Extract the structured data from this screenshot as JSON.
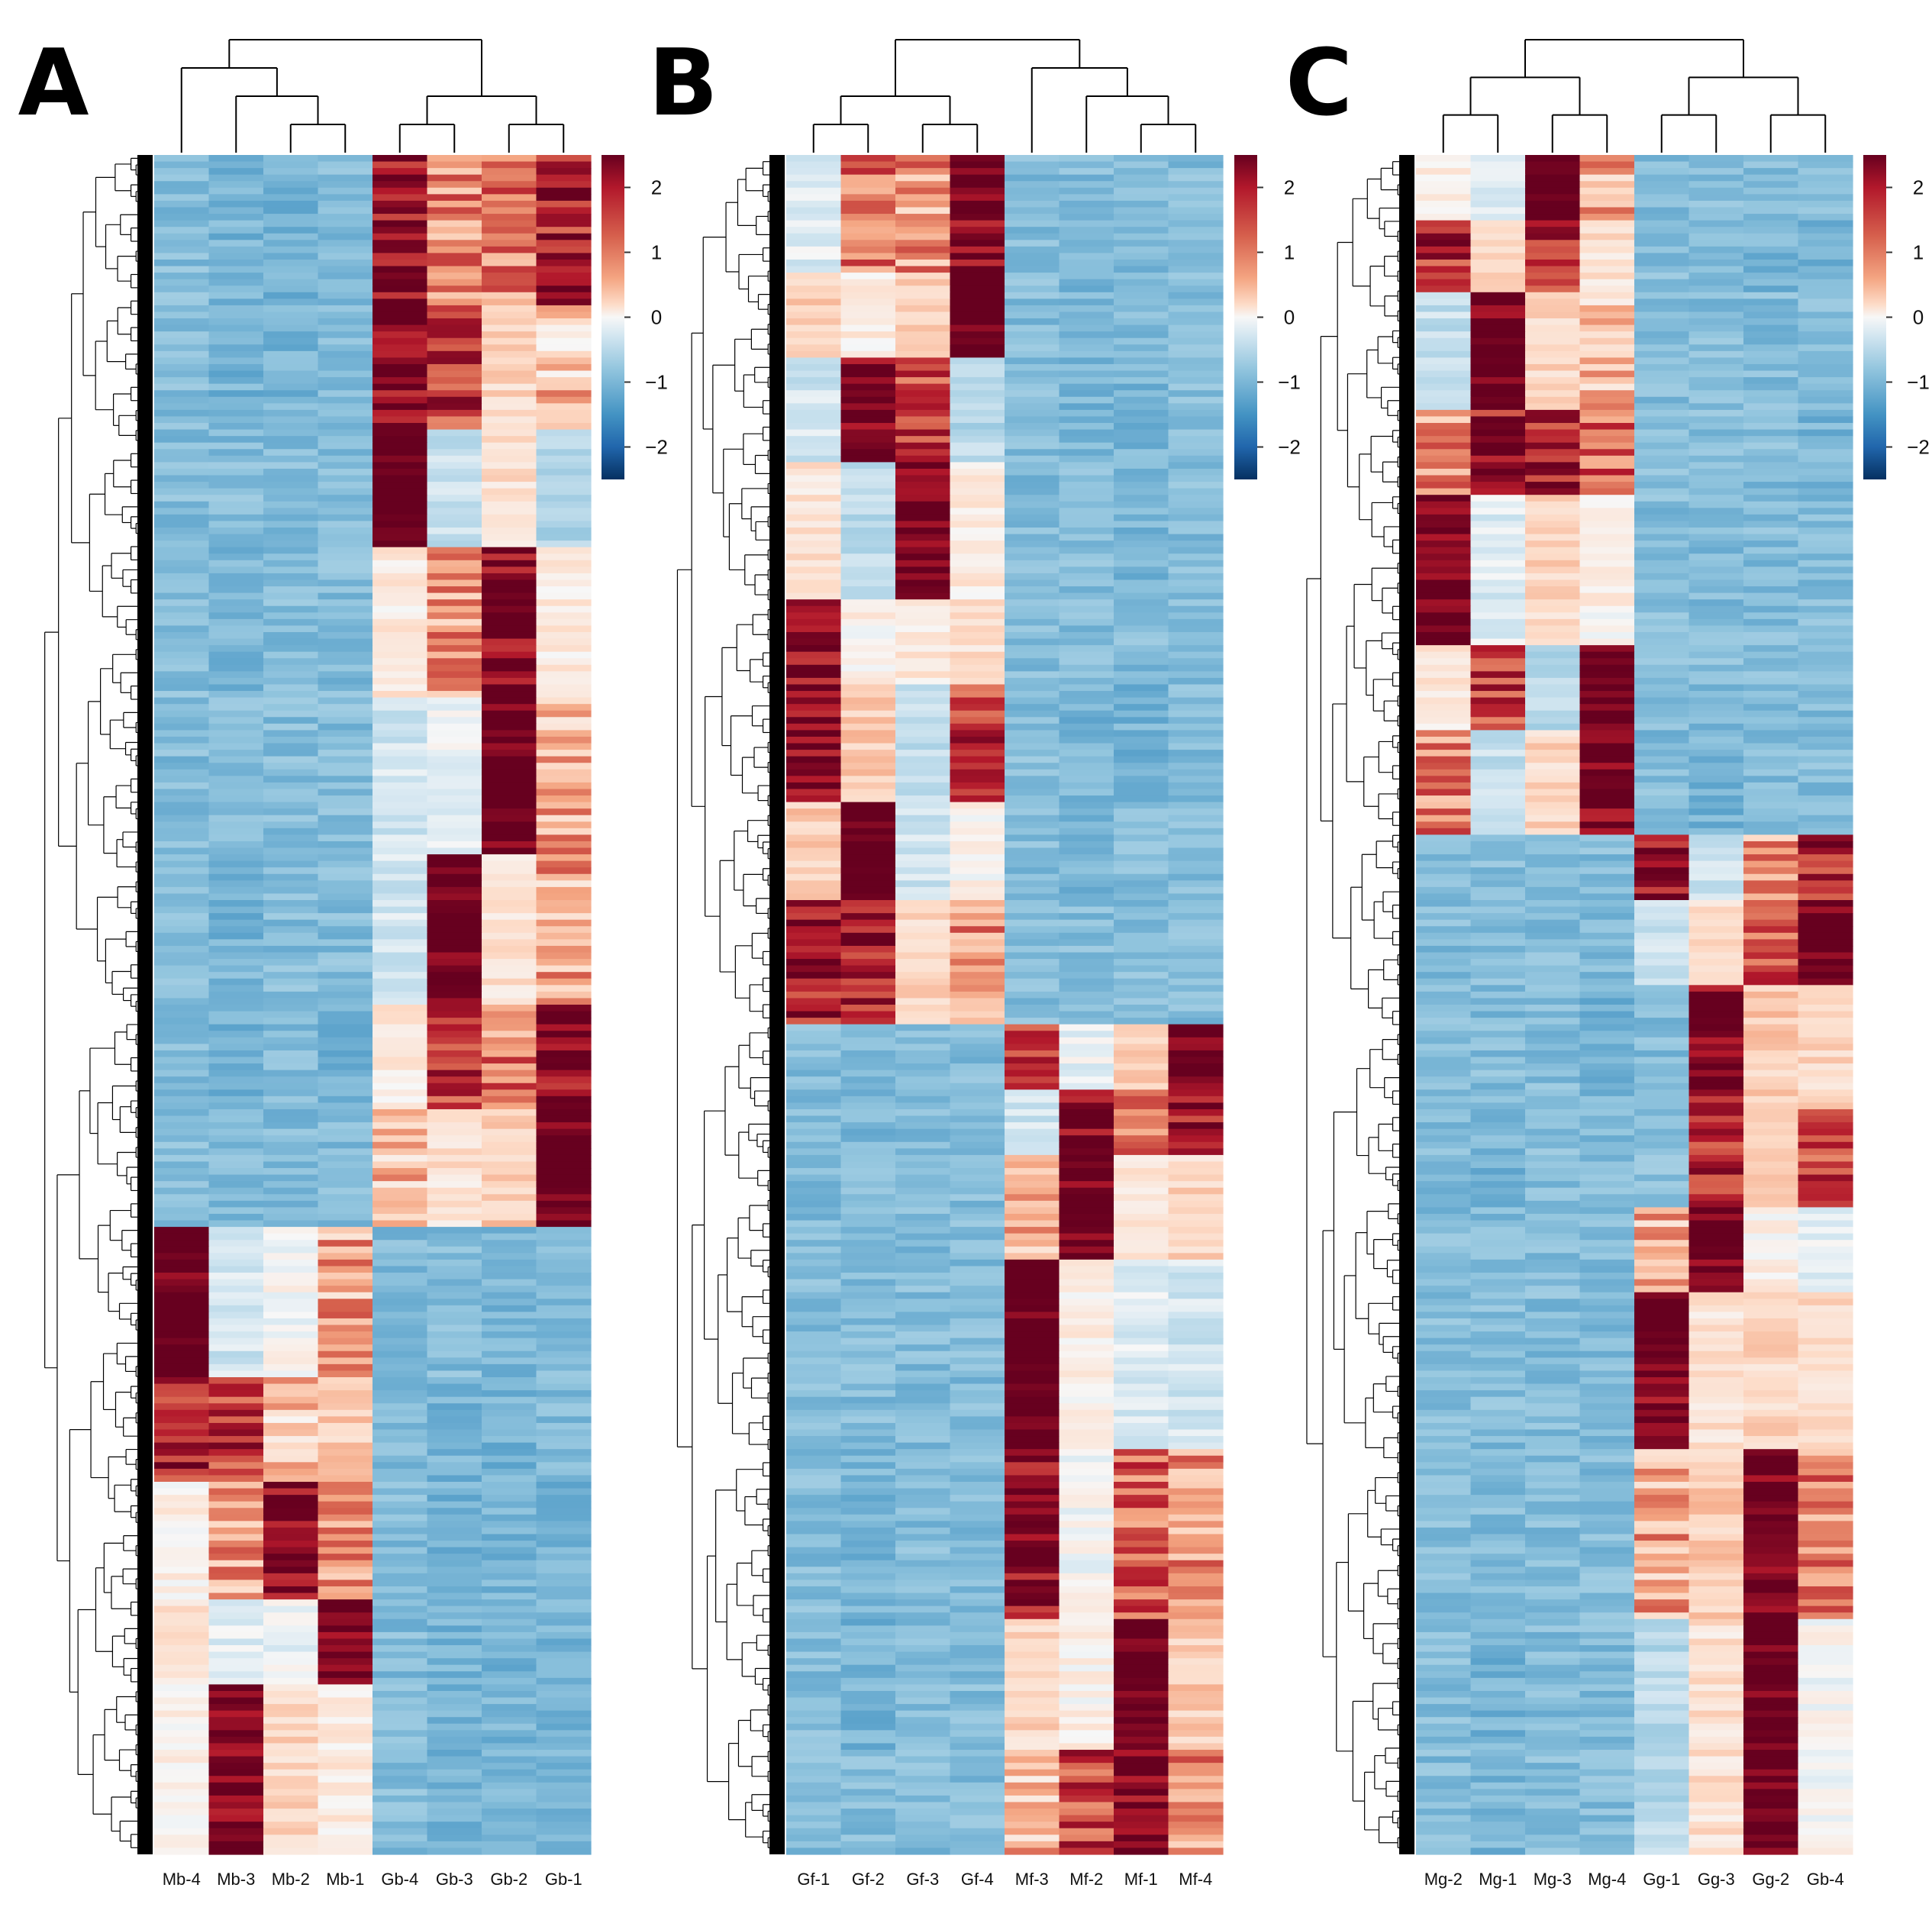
{
  "chart_data": [
    {
      "type": "heatmap",
      "panel_label": "A",
      "columns": [
        "Mb-4",
        "Mb-3",
        "Mb-2",
        "Mb-1",
        "Gb-4",
        "Gb-3",
        "Gb-2",
        "Gb-1"
      ],
      "row_dendrogram": true,
      "column_dendrogram": true,
      "colorbar": {
        "min": -2.5,
        "max": 2.5,
        "ticks": [
          2,
          1,
          0,
          -1,
          -2
        ],
        "tick_labels": [
          "2",
          "1",
          "0",
          "−1",
          "−2"
        ]
      },
      "blocks": [
        {
          "start": 0.0,
          "end": 0.09,
          "values": [
            -0.9,
            -1.0,
            -1.0,
            -0.9,
            2.0,
            1.0,
            1.1,
            1.8
          ]
        },
        {
          "start": 0.09,
          "end": 0.16,
          "values": [
            -0.9,
            -1.0,
            -1.0,
            -0.9,
            2.2,
            1.6,
            0.4,
            0.6
          ]
        },
        {
          "start": 0.16,
          "end": 0.23,
          "values": [
            -0.9,
            -0.9,
            -0.9,
            -0.9,
            2.6,
            -0.4,
            0.3,
            -0.6
          ]
        },
        {
          "start": 0.23,
          "end": 0.32,
          "values": [
            -0.9,
            -1.0,
            -0.9,
            -0.9,
            0.2,
            0.9,
            2.2,
            0.2
          ]
        },
        {
          "start": 0.32,
          "end": 0.41,
          "values": [
            -0.9,
            -0.9,
            -0.9,
            -0.9,
            -0.3,
            -0.1,
            2.5,
            0.8
          ]
        },
        {
          "start": 0.41,
          "end": 0.5,
          "values": [
            -0.9,
            -1.0,
            -0.9,
            -0.9,
            -0.3,
            2.5,
            0.3,
            0.8
          ]
        },
        {
          "start": 0.5,
          "end": 0.56,
          "values": [
            -0.9,
            -1.0,
            -0.9,
            -1.0,
            0.2,
            1.6,
            1.1,
            2.1
          ]
        },
        {
          "start": 0.56,
          "end": 0.63,
          "values": [
            -0.9,
            -0.9,
            -0.9,
            -0.9,
            0.6,
            0.3,
            0.5,
            2.5
          ]
        },
        {
          "start": 0.63,
          "end": 0.72,
          "values": [
            2.5,
            -0.3,
            0.0,
            0.8,
            -0.9,
            -0.9,
            -1.0,
            -0.9
          ]
        },
        {
          "start": 0.72,
          "end": 0.78,
          "values": [
            1.8,
            1.6,
            0.6,
            0.5,
            -0.9,
            -1.0,
            -1.0,
            -0.9
          ]
        },
        {
          "start": 0.78,
          "end": 0.85,
          "values": [
            0.1,
            0.9,
            2.2,
            1.0,
            -0.9,
            -1.0,
            -1.0,
            -1.0
          ]
        },
        {
          "start": 0.85,
          "end": 0.9,
          "values": [
            0.3,
            -0.2,
            -0.1,
            2.3,
            -0.9,
            -1.0,
            -1.0,
            -1.0
          ]
        },
        {
          "start": 0.9,
          "end": 1.0,
          "values": [
            0.1,
            2.3,
            0.4,
            0.2,
            -0.9,
            -1.0,
            -1.0,
            -1.0
          ]
        }
      ]
    },
    {
      "type": "heatmap",
      "panel_label": "B",
      "columns": [
        "Gf-1",
        "Gf-2",
        "Gf-3",
        "Gf-4",
        "Mf-3",
        "Mf-2",
        "Mf-1",
        "Mf-4"
      ],
      "row_dendrogram": true,
      "column_dendrogram": true,
      "colorbar": {
        "min": -2.5,
        "max": 2.5,
        "ticks": [
          2,
          1,
          0,
          -1,
          -2
        ],
        "tick_labels": [
          "2",
          "1",
          "0",
          "−1",
          "−2"
        ]
      },
      "blocks": [
        {
          "start": 0.0,
          "end": 0.07,
          "values": [
            -0.2,
            1.2,
            0.9,
            2.2,
            -0.9,
            -0.9,
            -0.9,
            -0.9
          ]
        },
        {
          "start": 0.07,
          "end": 0.12,
          "values": [
            0.5,
            0.2,
            0.4,
            2.6,
            -0.9,
            -1.0,
            -0.9,
            -0.9
          ]
        },
        {
          "start": 0.12,
          "end": 0.18,
          "values": [
            -0.3,
            2.3,
            1.5,
            -0.5,
            -0.9,
            -1.0,
            -1.0,
            -0.9
          ]
        },
        {
          "start": 0.18,
          "end": 0.26,
          "values": [
            0.3,
            -0.5,
            2.4,
            0.2,
            -0.9,
            -0.9,
            -1.0,
            -0.9
          ]
        },
        {
          "start": 0.26,
          "end": 0.31,
          "values": [
            2.1,
            0.1,
            0.2,
            0.3,
            -0.9,
            -0.9,
            -0.9,
            -0.9
          ]
        },
        {
          "start": 0.31,
          "end": 0.38,
          "values": [
            2.2,
            0.5,
            -0.4,
            1.6,
            -0.9,
            -1.0,
            -1.0,
            -0.9
          ]
        },
        {
          "start": 0.38,
          "end": 0.44,
          "values": [
            0.5,
            2.5,
            -0.3,
            0.1,
            -0.9,
            -1.0,
            -0.9,
            -0.9
          ]
        },
        {
          "start": 0.44,
          "end": 0.51,
          "values": [
            1.9,
            1.9,
            0.4,
            0.9,
            -0.9,
            -0.9,
            -0.9,
            -0.9
          ]
        },
        {
          "start": 0.51,
          "end": 0.55,
          "values": [
            -0.9,
            -0.9,
            -0.9,
            -0.9,
            1.5,
            -0.1,
            0.5,
            2.5
          ]
        },
        {
          "start": 0.55,
          "end": 0.59,
          "values": [
            -0.9,
            -1.0,
            -0.9,
            -0.9,
            -0.3,
            2.2,
            1.0,
            2.0
          ]
        },
        {
          "start": 0.59,
          "end": 0.65,
          "values": [
            -0.9,
            -0.9,
            -0.9,
            -0.9,
            0.7,
            2.4,
            0.2,
            0.4
          ]
        },
        {
          "start": 0.65,
          "end": 0.76,
          "values": [
            -0.9,
            -0.9,
            -0.9,
            -0.9,
            2.5,
            0.1,
            -0.2,
            -0.3
          ]
        },
        {
          "start": 0.76,
          "end": 0.86,
          "values": [
            -0.9,
            -1.0,
            -0.9,
            -0.9,
            2.0,
            0.0,
            1.3,
            1.0
          ]
        },
        {
          "start": 0.86,
          "end": 0.94,
          "values": [
            -0.9,
            -1.0,
            -0.9,
            -0.9,
            0.4,
            0.1,
            2.4,
            0.5
          ]
        },
        {
          "start": 0.94,
          "end": 1.0,
          "values": [
            -0.9,
            -0.9,
            -0.9,
            -0.9,
            0.6,
            1.5,
            2.2,
            1.0
          ]
        }
      ]
    },
    {
      "type": "heatmap",
      "panel_label": "C",
      "columns": [
        "Mg-2",
        "Mg-1",
        "Mg-3",
        "Mg-4",
        "Gg-1",
        "Gg-3",
        "Gg-2",
        "Gb-4"
      ],
      "row_dendrogram": true,
      "column_dendrogram": true,
      "colorbar": {
        "min": -2.5,
        "max": 2.5,
        "ticks": [
          2,
          1,
          0,
          -1,
          -2
        ],
        "tick_labels": [
          "2",
          "1",
          "0",
          "−1",
          "−2"
        ]
      },
      "blocks": [
        {
          "start": 0.0,
          "end": 0.04,
          "values": [
            0.1,
            -0.2,
            2.5,
            0.8,
            -0.9,
            -0.9,
            -0.9,
            -0.9
          ]
        },
        {
          "start": 0.04,
          "end": 0.08,
          "values": [
            1.7,
            0.4,
            1.8,
            0.3,
            -0.9,
            -0.9,
            -1.0,
            -1.0
          ]
        },
        {
          "start": 0.08,
          "end": 0.15,
          "values": [
            -0.4,
            2.4,
            0.4,
            0.6,
            -0.9,
            -0.9,
            -0.9,
            -0.9
          ]
        },
        {
          "start": 0.15,
          "end": 0.2,
          "values": [
            0.9,
            1.9,
            1.8,
            1.3,
            -0.9,
            -0.9,
            -0.9,
            -1.0
          ]
        },
        {
          "start": 0.2,
          "end": 0.29,
          "values": [
            2.4,
            -0.2,
            0.4,
            0.1,
            -0.9,
            -0.9,
            -0.9,
            -0.9
          ]
        },
        {
          "start": 0.29,
          "end": 0.34,
          "values": [
            0.2,
            1.6,
            -0.5,
            2.5,
            -0.9,
            -0.9,
            -0.9,
            -0.9
          ]
        },
        {
          "start": 0.34,
          "end": 0.4,
          "values": [
            1.1,
            -0.4,
            0.4,
            2.3,
            -0.9,
            -1.0,
            -0.9,
            -0.9
          ]
        },
        {
          "start": 0.4,
          "end": 0.44,
          "values": [
            -0.9,
            -0.9,
            -0.9,
            -0.9,
            1.9,
            -0.3,
            0.9,
            1.8
          ]
        },
        {
          "start": 0.44,
          "end": 0.49,
          "values": [
            -0.9,
            -0.9,
            -0.9,
            -0.9,
            -0.3,
            0.4,
            1.4,
            2.5
          ]
        },
        {
          "start": 0.49,
          "end": 0.56,
          "values": [
            -0.9,
            -0.9,
            -0.9,
            -1.0,
            -0.9,
            2.1,
            0.5,
            0.4
          ]
        },
        {
          "start": 0.56,
          "end": 0.62,
          "values": [
            -0.9,
            -1.0,
            -0.9,
            -0.9,
            -0.8,
            1.8,
            0.5,
            1.5
          ]
        },
        {
          "start": 0.62,
          "end": 0.67,
          "values": [
            -0.9,
            -0.9,
            -0.9,
            -0.9,
            0.8,
            2.4,
            0.1,
            -0.1
          ]
        },
        {
          "start": 0.67,
          "end": 0.76,
          "values": [
            -0.9,
            -0.9,
            -0.9,
            -0.9,
            2.3,
            0.3,
            0.4,
            0.4
          ]
        },
        {
          "start": 0.76,
          "end": 0.86,
          "values": [
            -0.9,
            -0.9,
            -0.9,
            -0.9,
            0.8,
            0.5,
            2.3,
            1.1
          ]
        },
        {
          "start": 0.86,
          "end": 1.0,
          "values": [
            -0.9,
            -1.0,
            -0.9,
            -0.9,
            -0.5,
            0.3,
            2.5,
            0.0
          ]
        }
      ]
    }
  ]
}
